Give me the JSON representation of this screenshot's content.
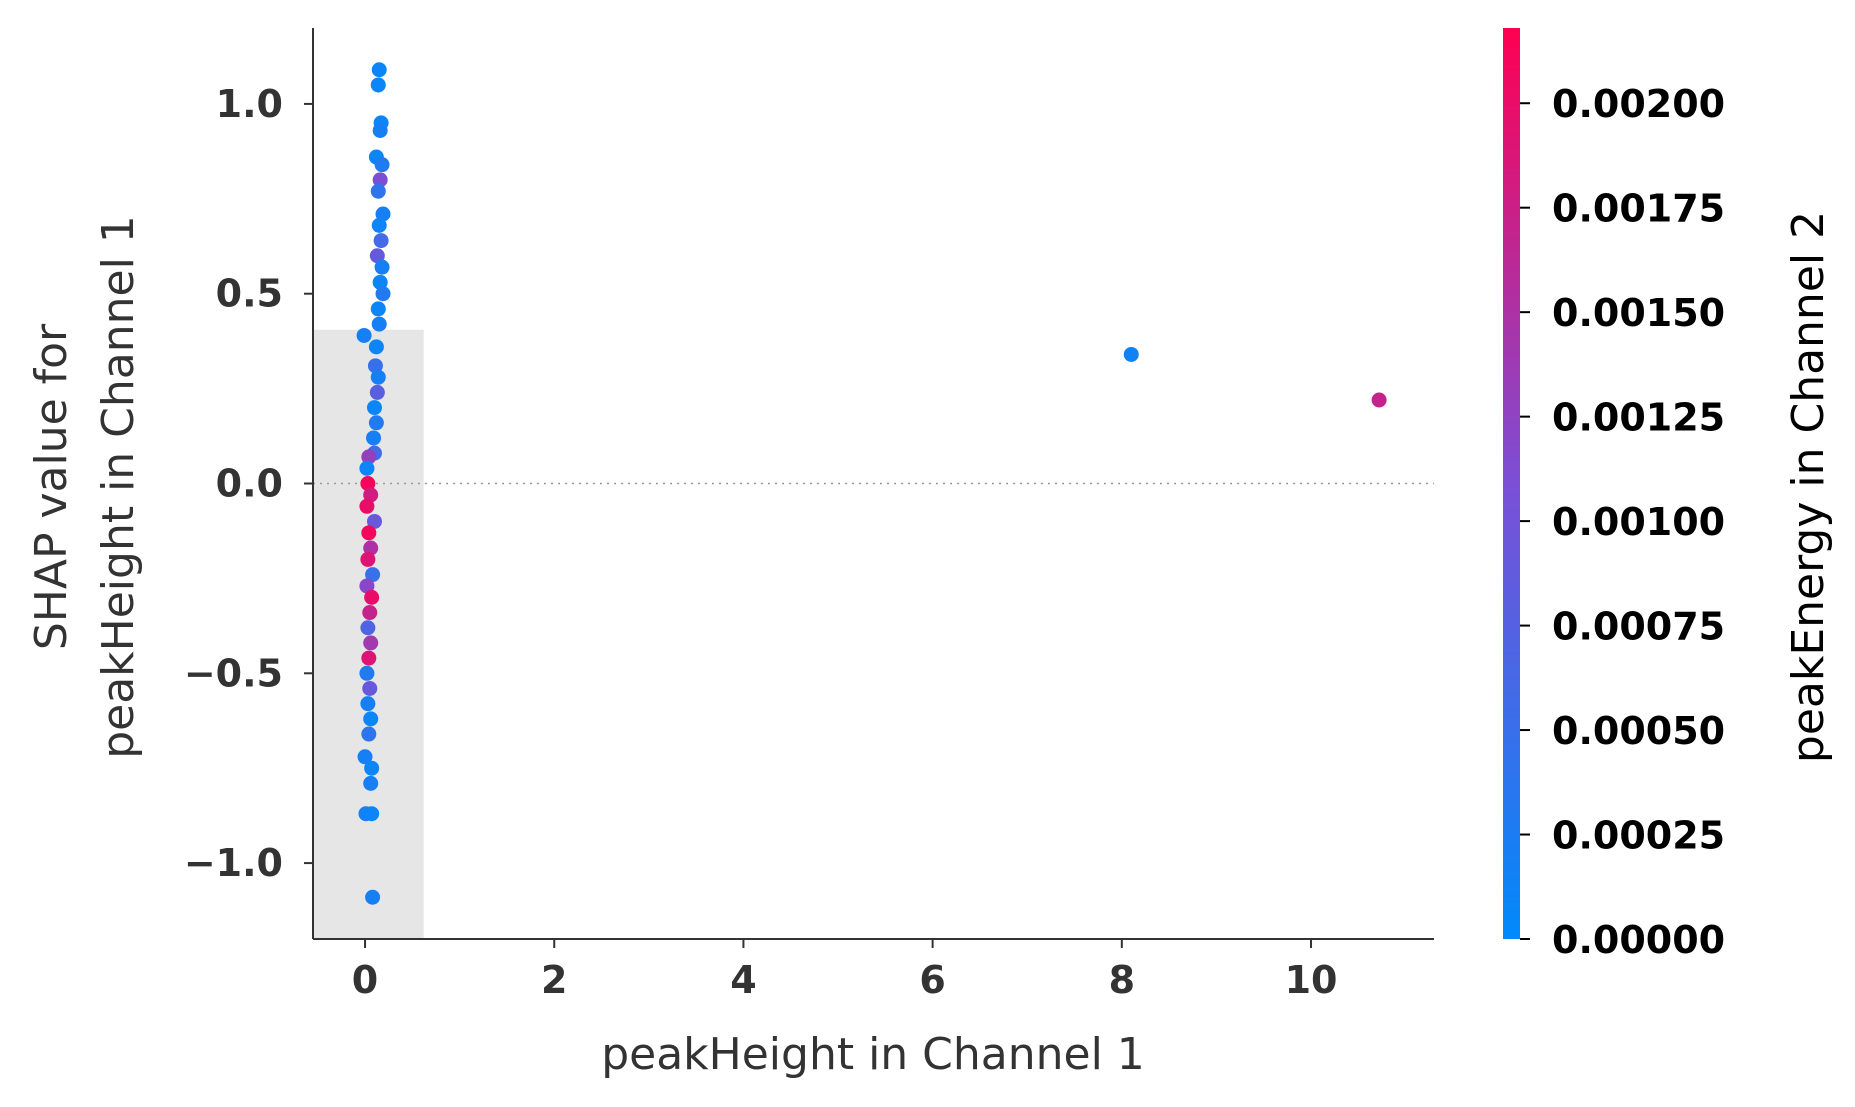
{
  "chart_data": {
    "type": "scatter",
    "title": "",
    "xlabel": "peakHeight in Channel 1",
    "ylabel_lines": [
      "SHAP value for",
      "peakHeight in Channel 1"
    ],
    "xlim": [
      -0.55,
      11.3
    ],
    "ylim": [
      -1.2,
      1.2
    ],
    "x_ticks": [
      0,
      2,
      4,
      6,
      8,
      10
    ],
    "x_tick_labels": [
      "0",
      "2",
      "4",
      "6",
      "8",
      "10"
    ],
    "y_ticks": [
      1.0,
      0.5,
      0.0,
      -0.5,
      -1.0
    ],
    "y_tick_labels": [
      "1.0",
      "0.5",
      "0.0",
      "−0.5",
      "−1.0"
    ],
    "zero_line": true,
    "histogram": [
      {
        "x0": -0.55,
        "x1": 0.62,
        "density": 0.405
      },
      {
        "x0": 0.62,
        "x1": 11.3,
        "density": 0.0
      }
    ],
    "histogram_lower_step": {
      "x0": -0.55,
      "x1": -0.05,
      "y": -0.42
    },
    "colorbar": {
      "label": "peakEnergy in Channel 2",
      "vmin": 0.0,
      "vmax": 0.00218,
      "ticks": [
        0.0,
        0.00025,
        0.0005,
        0.00075,
        0.001,
        0.00125,
        0.0015,
        0.00175,
        0.002
      ],
      "tick_labels": [
        "0.00000",
        "0.00025",
        "0.00050",
        "0.00075",
        "0.00100",
        "0.00125",
        "0.00150",
        "0.00175",
        "0.00200"
      ],
      "colors": [
        "#008afb",
        "#7b4fd6",
        "#ff0052"
      ]
    },
    "outliers": [
      {
        "x": 8.1,
        "y": 0.34,
        "c": 0.00015
      },
      {
        "x": 10.72,
        "y": 0.22,
        "c": 0.0017
      }
    ],
    "points": [
      {
        "x": 0.15,
        "y": 1.09,
        "c": 0.0001
      },
      {
        "x": 0.14,
        "y": 1.05,
        "c": 0.0001
      },
      {
        "x": 0.17,
        "y": 0.95,
        "c": 0.0001
      },
      {
        "x": 0.16,
        "y": 0.93,
        "c": 0.0002
      },
      {
        "x": 0.12,
        "y": 0.86,
        "c": 0.0001
      },
      {
        "x": 0.18,
        "y": 0.84,
        "c": 0.0003
      },
      {
        "x": 0.16,
        "y": 0.8,
        "c": 0.0011
      },
      {
        "x": 0.14,
        "y": 0.77,
        "c": 0.0004
      },
      {
        "x": 0.19,
        "y": 0.71,
        "c": 0.0002
      },
      {
        "x": 0.15,
        "y": 0.68,
        "c": 0.0001
      },
      {
        "x": 0.17,
        "y": 0.64,
        "c": 0.0006
      },
      {
        "x": 0.13,
        "y": 0.6,
        "c": 0.0009
      },
      {
        "x": 0.18,
        "y": 0.57,
        "c": 0.0002
      },
      {
        "x": 0.16,
        "y": 0.53,
        "c": 0.0001
      },
      {
        "x": 0.19,
        "y": 0.5,
        "c": 0.0003
      },
      {
        "x": 0.14,
        "y": 0.46,
        "c": 0.0001
      },
      {
        "x": 0.15,
        "y": 0.42,
        "c": 0.0002
      },
      {
        "x": -0.01,
        "y": 0.39,
        "c": 0.0002
      },
      {
        "x": 0.12,
        "y": 0.36,
        "c": 0.0001
      },
      {
        "x": 0.11,
        "y": 0.31,
        "c": 0.0005
      },
      {
        "x": 0.14,
        "y": 0.28,
        "c": 0.0002
      },
      {
        "x": 0.13,
        "y": 0.24,
        "c": 0.0008
      },
      {
        "x": 0.1,
        "y": 0.2,
        "c": 0.0001
      },
      {
        "x": 0.12,
        "y": 0.16,
        "c": 0.0003
      },
      {
        "x": 0.09,
        "y": 0.12,
        "c": 0.0002
      },
      {
        "x": 0.1,
        "y": 0.08,
        "c": 0.0006
      },
      {
        "x": 0.04,
        "y": 0.07,
        "c": 0.0013
      },
      {
        "x": 0.02,
        "y": 0.04,
        "c": 0.0001
      },
      {
        "x": 0.03,
        "y": 0.0,
        "c": 0.0021
      },
      {
        "x": 0.06,
        "y": -0.03,
        "c": 0.0018
      },
      {
        "x": 0.02,
        "y": -0.06,
        "c": 0.002
      },
      {
        "x": 0.1,
        "y": -0.1,
        "c": 0.0009
      },
      {
        "x": 0.04,
        "y": -0.13,
        "c": 0.0021
      },
      {
        "x": 0.06,
        "y": -0.17,
        "c": 0.0015
      },
      {
        "x": 0.03,
        "y": -0.2,
        "c": 0.0019
      },
      {
        "x": 0.08,
        "y": -0.24,
        "c": 0.0005
      },
      {
        "x": 0.02,
        "y": -0.27,
        "c": 0.0012
      },
      {
        "x": 0.07,
        "y": -0.3,
        "c": 0.002
      },
      {
        "x": 0.05,
        "y": -0.34,
        "c": 0.0017
      },
      {
        "x": 0.03,
        "y": -0.38,
        "c": 0.0007
      },
      {
        "x": 0.06,
        "y": -0.42,
        "c": 0.0014
      },
      {
        "x": 0.04,
        "y": -0.46,
        "c": 0.0019
      },
      {
        "x": 0.02,
        "y": -0.5,
        "c": 0.0003
      },
      {
        "x": 0.05,
        "y": -0.54,
        "c": 0.0009
      },
      {
        "x": 0.03,
        "y": -0.58,
        "c": 0.0002
      },
      {
        "x": 0.06,
        "y": -0.62,
        "c": 0.0001
      },
      {
        "x": 0.04,
        "y": -0.66,
        "c": 0.0004
      },
      {
        "x": 0.0,
        "y": -0.72,
        "c": 0.0002
      },
      {
        "x": 0.07,
        "y": -0.75,
        "c": 0.0001
      },
      {
        "x": 0.06,
        "y": -0.79,
        "c": 0.0002
      },
      {
        "x": 0.01,
        "y": -0.87,
        "c": 0.0002
      },
      {
        "x": 0.07,
        "y": -0.87,
        "c": 0.0001
      },
      {
        "x": 0.08,
        "y": -1.09,
        "c": 0.0002
      }
    ]
  }
}
